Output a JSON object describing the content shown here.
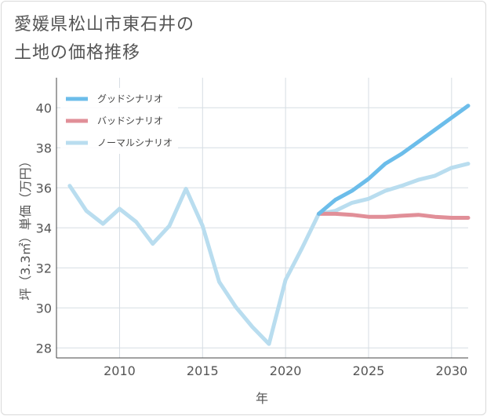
{
  "header": {
    "title_line1": "愛媛県松山市東石井の",
    "title_line2": "土地の価格推移"
  },
  "chart_data": {
    "type": "line",
    "title": "愛媛県松山市東石井の土地の価格推移",
    "xlabel": "年",
    "ylabel": "坪（3.3㎡）単価（万円）",
    "xlim": [
      2006.2,
      2031
    ],
    "ylim": [
      27.5,
      41.5
    ],
    "xticks": [
      2010,
      2015,
      2020,
      2025,
      2030
    ],
    "yticks": [
      28,
      30,
      32,
      34,
      36,
      38,
      40
    ],
    "grid": true,
    "legend_position": "top-left",
    "series": [
      {
        "name": "グッドシナリオ",
        "color": "#6cbdea",
        "x": [
          2022,
          2023,
          2024,
          2025,
          2026,
          2027,
          2028,
          2029,
          2030,
          2031
        ],
        "values": [
          34.7,
          35.4,
          35.85,
          36.45,
          37.2,
          37.7,
          38.3,
          38.9,
          39.5,
          40.1
        ]
      },
      {
        "name": "バッドシナリオ",
        "color": "#e18f98",
        "x": [
          2022,
          2023,
          2024,
          2025,
          2026,
          2027,
          2028,
          2029,
          2030,
          2031
        ],
        "values": [
          34.7,
          34.7,
          34.65,
          34.55,
          34.55,
          34.6,
          34.65,
          34.55,
          34.5,
          34.5
        ]
      },
      {
        "name": "ノーマルシナリオ",
        "color": "#b9ddef",
        "x": [
          2007,
          2008,
          2009,
          2010,
          2011,
          2012,
          2013,
          2014,
          2015,
          2016,
          2017,
          2018,
          2019,
          2020,
          2021,
          2022,
          2023,
          2024,
          2025,
          2026,
          2027,
          2028,
          2029,
          2030,
          2031
        ],
        "values": [
          36.1,
          34.85,
          34.2,
          34.95,
          34.3,
          33.2,
          34.1,
          35.95,
          34.1,
          31.3,
          30.05,
          29.05,
          28.2,
          31.4,
          33.0,
          34.7,
          34.85,
          35.25,
          35.45,
          35.85,
          36.1,
          36.4,
          36.6,
          37.0,
          37.2
        ]
      }
    ]
  }
}
